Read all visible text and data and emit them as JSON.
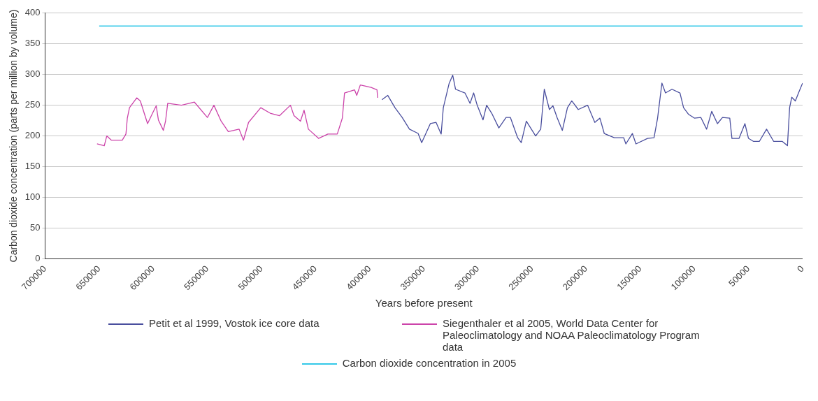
{
  "chart_data": {
    "type": "line",
    "xlabel": "Years before present",
    "ylabel": "Carbon dioxide concentration (parts per million by volume)",
    "xlim": [
      700000,
      0
    ],
    "xticks": [
      700000,
      650000,
      600000,
      550000,
      500000,
      450000,
      400000,
      350000,
      300000,
      250000,
      200000,
      150000,
      100000,
      50000,
      0
    ],
    "ylim": [
      0,
      400
    ],
    "yticks": [
      0,
      50,
      100,
      150,
      200,
      250,
      300,
      350,
      400
    ],
    "grid": "y",
    "legend": "bottom",
    "marker": "none",
    "line_style": "solid",
    "series": [
      {
        "name": "Petit et al 1999, Vostok ice core data",
        "color": "#4a4f9e",
        "x": [
          388700,
          383300,
          376700,
          370000,
          363300,
          355300,
          352000,
          344000,
          338700,
          334000,
          332000,
          326700,
          323300,
          320700,
          312000,
          307300,
          304000,
          300700,
          295300,
          292000,
          287300,
          280700,
          274000,
          270000,
          263300,
          260000,
          255300,
          246700,
          242000,
          238700,
          234000,
          230700,
          226700,
          222000,
          217300,
          213300,
          207300,
          198700,
          192000,
          187300,
          183300,
          174000,
          165300,
          163300,
          157300,
          154000,
          143300,
          137300,
          134000,
          130000,
          126700,
          120700,
          113300,
          110000,
          105300,
          100000,
          94000,
          88700,
          84000,
          78700,
          74000,
          67300,
          65300,
          58700,
          53300,
          50000,
          45300,
          40000,
          33300,
          26700,
          18700,
          14000,
          12000,
          10000,
          6700,
          3300,
          0
        ],
        "values": [
          259,
          266,
          246,
          230,
          211,
          204,
          189,
          220,
          222,
          203,
          246,
          285,
          299,
          276,
          270,
          253,
          270,
          250,
          226,
          250,
          237,
          213,
          230,
          230,
          197,
          189,
          224,
          200,
          211,
          276,
          243,
          249,
          229,
          209,
          246,
          257,
          243,
          250,
          222,
          229,
          204,
          197,
          197,
          187,
          204,
          187,
          196,
          197,
          229,
          286,
          270,
          276,
          270,
          246,
          235,
          229,
          230,
          211,
          240,
          220,
          230,
          229,
          196,
          196,
          220,
          196,
          191,
          191,
          211,
          191,
          191,
          184,
          246,
          263,
          257,
          272,
          286
        ]
      },
      {
        "name": "Siegenthaler et al 2005, World Data Center for Paleoclimatology and NOAA Paleoclimatology Program data",
        "color": "#cc44aa",
        "x": [
          652000,
          645300,
          643000,
          638700,
          628700,
          625300,
          624000,
          622000,
          615300,
          612000,
          605300,
          600700,
          597300,
          595300,
          590700,
          588700,
          586700,
          574000,
          562000,
          550000,
          544000,
          537300,
          530700,
          520700,
          516700,
          512000,
          500700,
          492000,
          483300,
          473300,
          470000,
          464000,
          460700,
          456700,
          447300,
          438700,
          430000,
          425300,
          423300,
          414000,
          412000,
          408700,
          398700,
          393300,
          392700
        ],
        "values": [
          187,
          184,
          200,
          193,
          193,
          203,
          229,
          246,
          262,
          257,
          220,
          237,
          249,
          226,
          209,
          224,
          253,
          250,
          255,
          230,
          250,
          224,
          207,
          211,
          193,
          222,
          246,
          237,
          233,
          250,
          233,
          224,
          242,
          211,
          196,
          203,
          203,
          229,
          270,
          275,
          266,
          283,
          279,
          275,
          262
        ]
      },
      {
        "name": "Carbon dioxide concentration in 2005",
        "color": "#33c8e8",
        "x": [
          650000,
          0
        ],
        "values": [
          379,
          379
        ]
      }
    ]
  }
}
